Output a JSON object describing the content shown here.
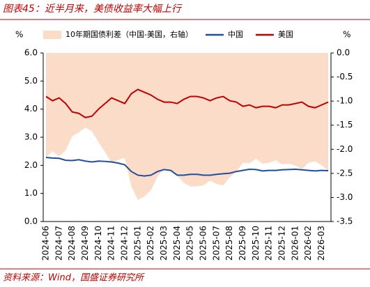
{
  "chart_data": {
    "type": "line",
    "title": "图表45：近半月来，美债收益率大幅上行",
    "source": "资料来源：Wind，国盛证券研究所",
    "y_label": "%",
    "y2_label": "%",
    "legend": "top",
    "categories": [
      "2024-06",
      null,
      "2024-07",
      null,
      "2024-08",
      null,
      "2024-09",
      null,
      "2024-10",
      null,
      "2024-11",
      null,
      "2024-12",
      null,
      "2025-01",
      null,
      "2025-02",
      null,
      "2025-03",
      null,
      "2025-04",
      null,
      "2025-05",
      null,
      "2025-06",
      null,
      "2025-07",
      null,
      "2025-08",
      null,
      "2025-09",
      null,
      "2025-10",
      null,
      "2025-11",
      null,
      "2025-12",
      null,
      "2026-01",
      null,
      "2026-02",
      null,
      "2026-03",
      null
    ],
    "series": [
      {
        "name": "10年期国债利差（中国-美国，右轴）",
        "kind": "area",
        "axis": "y2",
        "color": "#fbdcc8",
        "values": [
          -2.17,
          -2.04,
          -2.15,
          -2.02,
          -1.73,
          -1.65,
          -1.55,
          -1.63,
          -1.85,
          -2.06,
          -2.28,
          -2.22,
          -2.18,
          -2.77,
          -3.05,
          -2.98,
          -2.85,
          -2.57,
          -2.4,
          -2.43,
          -2.55,
          -2.7,
          -2.77,
          -2.77,
          -2.75,
          -2.65,
          -2.72,
          -2.75,
          -2.58,
          -2.47,
          -2.28,
          -2.29,
          -2.2,
          -2.3,
          -2.28,
          -2.23,
          -2.31,
          -2.3,
          -2.34,
          -2.41,
          -2.28,
          -2.25,
          -2.33,
          -2.44
        ]
      },
      {
        "name": "中国",
        "kind": "line",
        "color": "#1f4e9c",
        "values": [
          2.28,
          2.26,
          2.25,
          2.18,
          2.17,
          2.2,
          2.15,
          2.12,
          2.15,
          2.14,
          2.12,
          2.08,
          2.02,
          1.78,
          1.65,
          1.62,
          1.65,
          1.78,
          1.85,
          1.82,
          1.65,
          1.65,
          1.68,
          1.68,
          1.65,
          1.65,
          1.68,
          1.7,
          1.72,
          1.78,
          1.82,
          1.86,
          1.85,
          1.8,
          1.82,
          1.82,
          1.84,
          1.85,
          1.86,
          1.84,
          1.82,
          1.8,
          1.82,
          1.81
        ]
      },
      {
        "name": "美国",
        "kind": "line",
        "color": "#c00000",
        "values": [
          4.45,
          4.3,
          4.4,
          4.2,
          3.9,
          3.85,
          3.7,
          3.75,
          4.0,
          4.2,
          4.4,
          4.3,
          4.2,
          4.55,
          4.7,
          4.6,
          4.5,
          4.35,
          4.25,
          4.25,
          4.2,
          4.35,
          4.45,
          4.45,
          4.4,
          4.3,
          4.4,
          4.45,
          4.3,
          4.25,
          4.1,
          4.15,
          4.05,
          4.1,
          4.1,
          4.05,
          4.15,
          4.15,
          4.2,
          4.25,
          4.1,
          4.05,
          4.15,
          4.25
        ]
      }
    ],
    "ylim": [
      0,
      6
    ],
    "yticks": [
      {
        "value": 0,
        "label": "0.0"
      },
      {
        "value": 1,
        "label": "1.0"
      },
      {
        "value": 2,
        "label": "2.0"
      },
      {
        "value": 3,
        "label": "3.0"
      },
      {
        "value": 4,
        "label": "4.0"
      },
      {
        "value": 5,
        "label": "5.0"
      },
      {
        "value": 6,
        "label": "6.0"
      }
    ],
    "y2lim": [
      -3.5,
      0
    ],
    "y2ticks": [
      {
        "value": -3.5,
        "label": "-3.5"
      },
      {
        "value": -3,
        "label": "-3.0"
      },
      {
        "value": -2.5,
        "label": "-2.5"
      },
      {
        "value": -2,
        "label": "-2.0"
      },
      {
        "value": -1.5,
        "label": "-1.5"
      },
      {
        "value": -1,
        "label": "-1.0"
      },
      {
        "value": -0.5,
        "label": "-0.5"
      },
      {
        "value": 0,
        "label": "0.0"
      }
    ]
  }
}
